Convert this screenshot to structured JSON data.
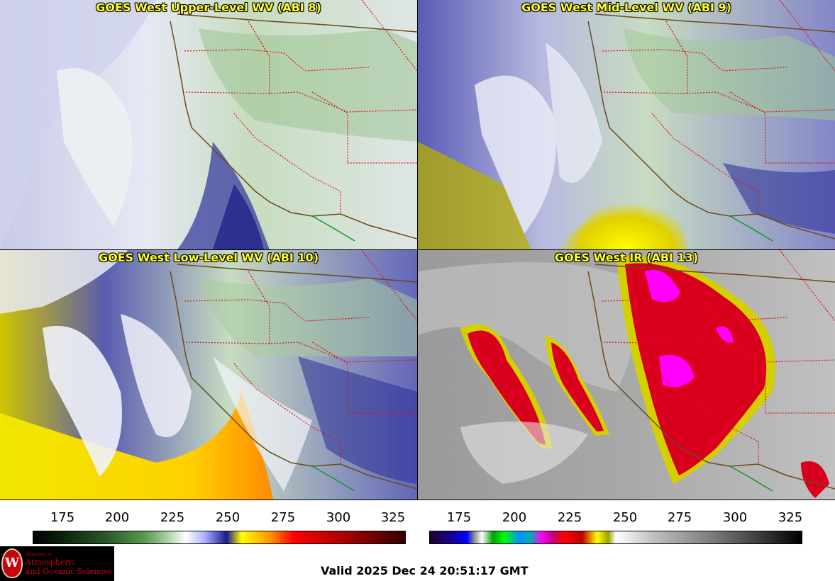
{
  "panels": [
    {
      "title": "GOES West Upper-Level WV (ABI 8)"
    },
    {
      "title": "GOES West Mid-Level WV (ABI 9)"
    },
    {
      "title": "GOES West Low-Level WV (ABI 10)"
    },
    {
      "title": "GOES West IR (ABI 13)"
    }
  ],
  "colorbars": {
    "left": {
      "ticks": [
        "175",
        "200",
        "225",
        "250",
        "275",
        "300",
        "325"
      ]
    },
    "right": {
      "ticks": [
        "175",
        "200",
        "225",
        "250",
        "275",
        "300",
        "325"
      ]
    }
  },
  "logo": {
    "department": "Department of",
    "line1": "Atmospheric",
    "line2": "and Oceanic Sciences",
    "seal_letter": "W"
  },
  "footer": {
    "valid_time": "Valid 2025 Dec 24 20:51:17 GMT"
  },
  "colors": {
    "title_yellow": "#ffff2a",
    "state_borders": "#e01010",
    "coastline": "#6b4a1a",
    "mexico_border": "#0a9a2a"
  }
}
